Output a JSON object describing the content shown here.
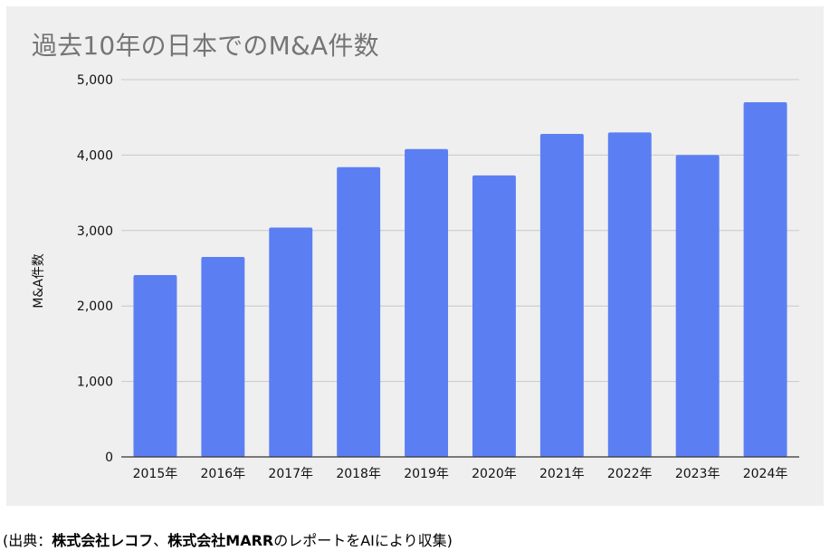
{
  "chart_data": {
    "type": "bar",
    "title": "過去10年の日本でのM&A件数",
    "ylabel": "M&A件数",
    "xlabel": "",
    "categories": [
      "2015年",
      "2016年",
      "2017年",
      "2018年",
      "2019年",
      "2020年",
      "2021年",
      "2022年",
      "2023年",
      "2024年"
    ],
    "values": [
      2410,
      2650,
      3040,
      3840,
      4080,
      3730,
      4280,
      4300,
      4000,
      4700
    ],
    "ylim": [
      0,
      5000
    ],
    "yticks": [
      "0",
      "1,000",
      "2,000",
      "3,000",
      "4,000",
      "5,000"
    ],
    "grid": true,
    "bar_color": "#5b7ff3",
    "background": "#efefef"
  },
  "caption": {
    "open": "(出典：",
    "source1": "株式会社レコフ",
    "separator": "、",
    "source2": "株式会社MARR",
    "rest": "のレポートをAIにより収集)"
  }
}
